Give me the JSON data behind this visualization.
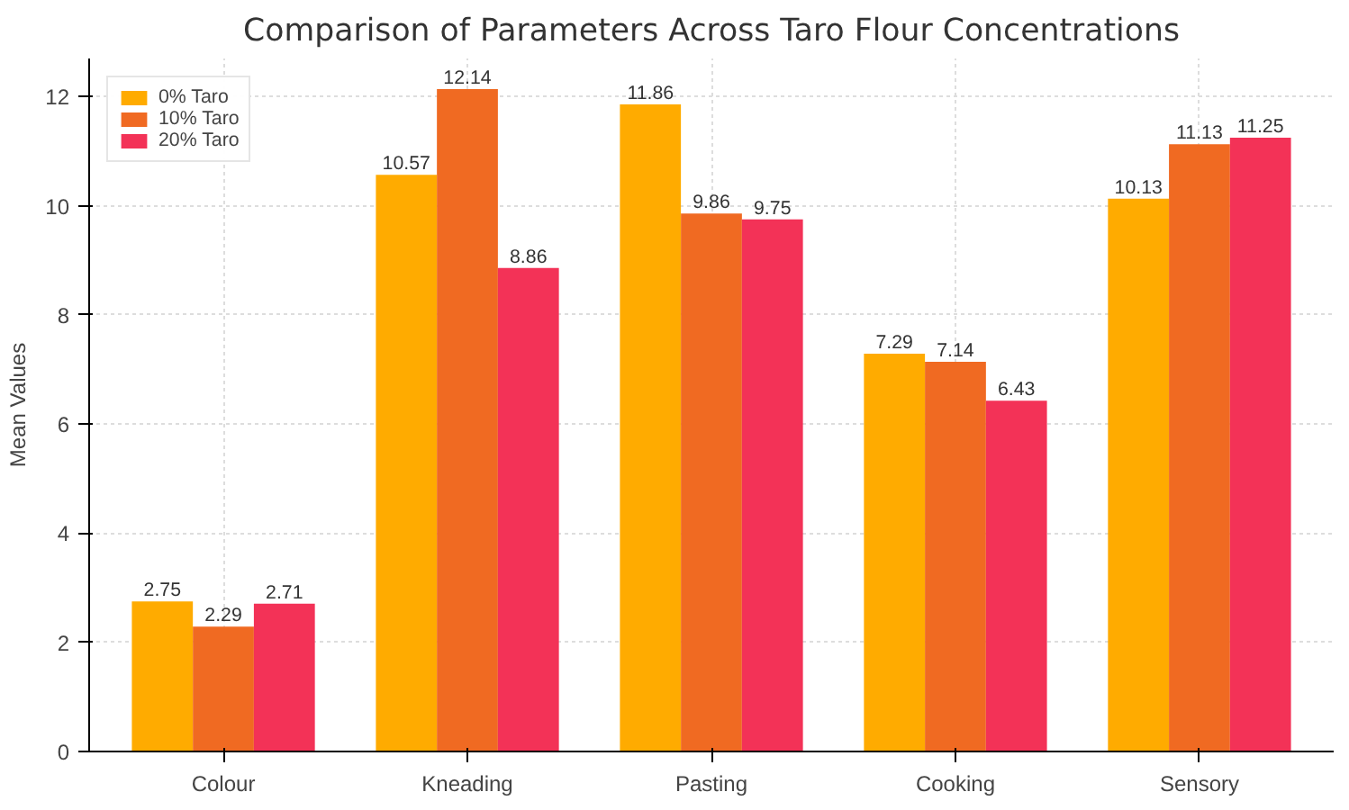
{
  "chart_data": {
    "type": "bar",
    "title": "Comparison of Parameters Across Taro Flour Concentrations",
    "ylabel": "Mean Values",
    "categories": [
      "Colour",
      "Kneading",
      "Pasting",
      "Cooking",
      "Sensory"
    ],
    "series": [
      {
        "name": "0% Taro",
        "color": "#ffab00",
        "values": [
          2.75,
          10.57,
          11.86,
          7.29,
          10.13
        ]
      },
      {
        "name": "10% Taro",
        "color": "#f06a22",
        "values": [
          2.29,
          12.14,
          9.86,
          7.14,
          11.13
        ]
      },
      {
        "name": "20% Taro",
        "color": "#f33257",
        "values": [
          2.71,
          8.86,
          9.75,
          6.43,
          11.25
        ]
      }
    ],
    "ylim": [
      0,
      12.7
    ],
    "yticks": [
      0,
      2,
      4,
      6,
      8,
      10,
      12
    ],
    "grid": true,
    "legend": "top left",
    "data_labels": true
  }
}
